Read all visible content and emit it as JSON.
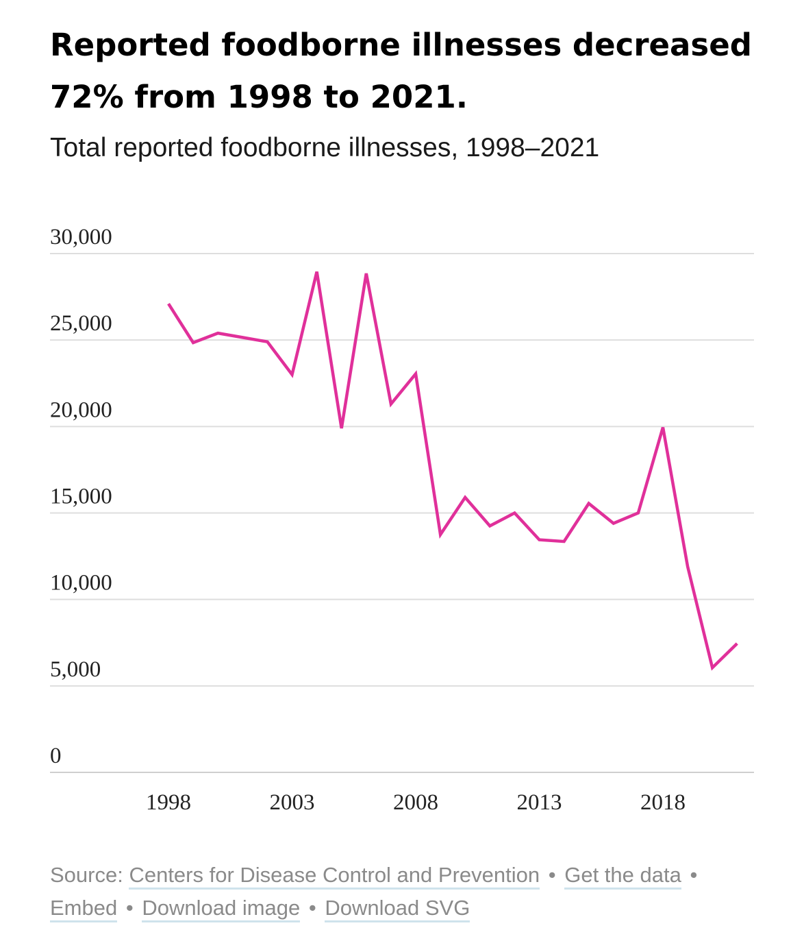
{
  "title": "Reported foodborne illnesses decreased 72% from 1998 to 2021.",
  "subtitle": "Total reported foodborne illnesses, 1998–2021",
  "line_color": "#e0309a",
  "chart_data": {
    "type": "line",
    "title": "Reported foodborne illnesses decreased 72% from 1998 to 2021.",
    "subtitle": "Total reported foodborne illnesses, 1998–2021",
    "xlabel": "",
    "ylabel": "",
    "x": [
      1998,
      1999,
      2000,
      2001,
      2002,
      2003,
      2004,
      2005,
      2006,
      2007,
      2008,
      2009,
      2010,
      2011,
      2012,
      2013,
      2014,
      2015,
      2016,
      2017,
      2018,
      2019,
      2020,
      2021
    ],
    "series": [
      {
        "values": [
          27100,
          24850,
          25400,
          25150,
          24900,
          23000,
          28950,
          19900,
          28850,
          21300,
          23050,
          13750,
          15900,
          14250,
          15000,
          13450,
          13350,
          15550,
          14400,
          15000,
          19950,
          11900,
          6050,
          7450
        ]
      }
    ],
    "xticks": [
      "1998",
      "2003",
      "2008",
      "2013",
      "2018"
    ],
    "yticks": [
      "0",
      "5,000",
      "10,000",
      "15,000",
      "20,000",
      "25,000",
      "30,000"
    ],
    "ylim": [
      0,
      30000
    ],
    "grid": "horizontal"
  },
  "footer": {
    "source_prefix": "Source: ",
    "source_link": "Centers for Disease Control and Prevention",
    "get_data": "Get the data",
    "embed": "Embed",
    "download_image": "Download image",
    "download_svg": "Download SVG",
    "separator": "•"
  }
}
